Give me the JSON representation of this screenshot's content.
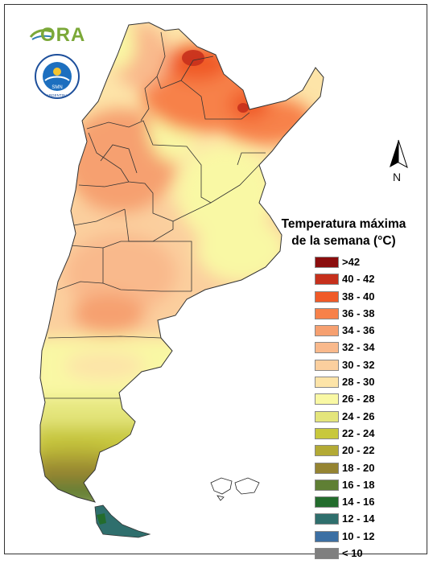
{
  "brand": {
    "ora_logo_text": "ORA",
    "seal_ring_text": "SERVICIO METEOROLOGICO NACIONAL",
    "seal_bottom_text": "ARGENTINA",
    "seal_center_text": "SMN"
  },
  "north_arrow": {
    "letter": "N"
  },
  "legend": {
    "title_line1": "Temperatura máxima",
    "title_line2": "de la semana (°C)",
    "classes": [
      {
        "label": ">42",
        "color": "#8b0d0d"
      },
      {
        "label": "40 - 42",
        "color": "#c6301c"
      },
      {
        "label": "38 - 40",
        "color": "#f05a28"
      },
      {
        "label": "36 - 38",
        "color": "#f7814a"
      },
      {
        "label": "34 - 36",
        "color": "#f6a070"
      },
      {
        "label": "32 - 34",
        "color": "#f9b98c"
      },
      {
        "label": "30 - 32",
        "color": "#fbcf9e"
      },
      {
        "label": "28 - 30",
        "color": "#fde4a8"
      },
      {
        "label": "26 - 28",
        "color": "#f9f8a4"
      },
      {
        "label": "24 - 26",
        "color": "#e4e57b"
      },
      {
        "label": "22 - 24",
        "color": "#c8c83c"
      },
      {
        "label": "20 - 22",
        "color": "#b3aa35"
      },
      {
        "label": "18 - 20",
        "color": "#958432"
      },
      {
        "label": "16 - 18",
        "color": "#5f7f34"
      },
      {
        "label": "14 - 16",
        "color": "#236c2d"
      },
      {
        "label": "12 - 14",
        "color": "#2f6f6d"
      },
      {
        "label": "10 - 12",
        "color": "#3c6fa3"
      },
      {
        "label": "< 10",
        "color": "#7f7f7f"
      }
    ]
  }
}
